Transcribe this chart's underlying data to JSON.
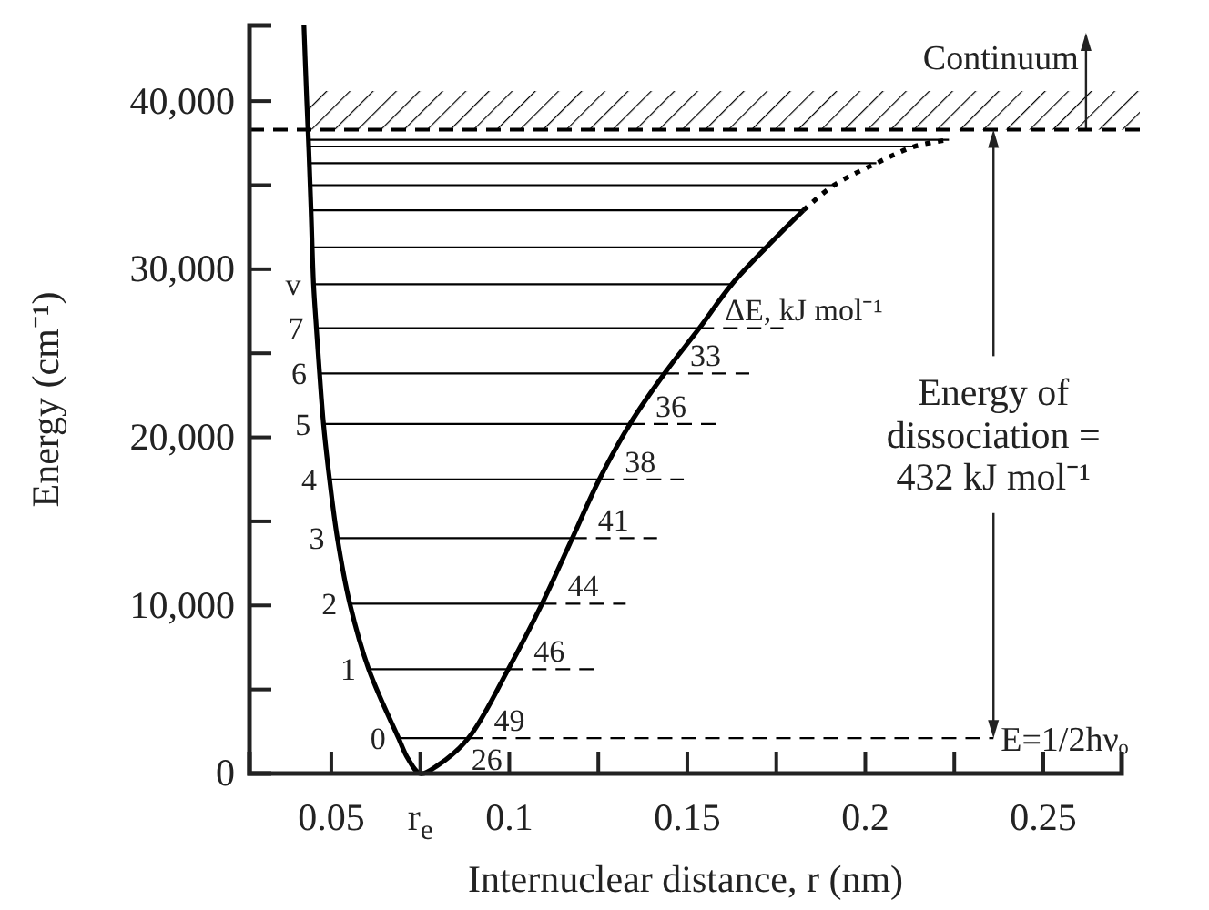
{
  "chart_data": {
    "type": "line",
    "xlabel": "Internuclear distance, r (nm)",
    "ylabel": "Energy (cm⁻¹)",
    "xlim": [
      0.027,
      0.272
    ],
    "ylim": [
      0,
      44500
    ],
    "xticks": [
      0.05,
      {
        "value": 0.075,
        "label": "r$_{e}$"
      },
      0.1,
      {
        "value": 0.125,
        "label": null
      },
      0.15,
      {
        "value": 0.175,
        "label": null
      },
      0.2,
      {
        "value": 0.225,
        "label": null
      },
      0.25
    ],
    "yticks": [
      0,
      {
        "value": 5000,
        "label": null
      },
      {
        "value": 10000,
        "label": "10,000"
      },
      {
        "value": 15000,
        "label": null
      },
      {
        "value": 20000,
        "label": "20,000"
      },
      {
        "value": 25000,
        "label": null
      },
      {
        "value": 30000,
        "label": "30,000"
      },
      {
        "value": 35000,
        "label": null
      },
      {
        "value": 40000,
        "label": "40,000"
      }
    ],
    "series": [
      {
        "color": "#000000",
        "line_style": "solid",
        "x": [
          0.0423,
          0.0431,
          0.0437,
          0.0443,
          0.045,
          0.0458,
          0.0467,
          0.0478,
          0.0495,
          0.0517,
          0.0552,
          0.0605,
          0.0689,
          0.0715,
          0.075,
          0.08,
          0.0885,
          0.0997,
          0.1092,
          0.1177,
          0.1253,
          0.1339,
          0.1436,
          0.1534,
          0.1625,
          0.1722,
          0.1826
        ],
        "values": [
          44500,
          40000,
          37000,
          33500,
          29100,
          26500,
          23800,
          20800,
          17500,
          14000,
          10100,
          6200,
          2100,
          900,
          0,
          500,
          2100,
          6200,
          10100,
          14000,
          17500,
          20800,
          23800,
          26500,
          29100,
          31300,
          33500
        ]
      },
      {
        "color": "#000000",
        "line_style": "dotted",
        "x": [
          0.1826,
          0.1912,
          0.2031,
          0.2138,
          0.2235
        ],
        "values": [
          33500,
          35000,
          36300,
          37300,
          37700
        ]
      },
      {
        "color": "#000000",
        "line_style": "solid",
        "x": [
          0.0689,
          0.0885
        ],
        "values": [
          2100,
          2100
        ]
      },
      {
        "color": "#000000",
        "line_style": "solid",
        "x": [
          0.0605,
          0.0997
        ],
        "values": [
          6200,
          6200
        ]
      },
      {
        "color": "#000000",
        "line_style": "solid",
        "x": [
          0.0552,
          0.1092
        ],
        "values": [
          10100,
          10100
        ]
      },
      {
        "color": "#000000",
        "line_style": "solid",
        "x": [
          0.0517,
          0.1177
        ],
        "values": [
          14000,
          14000
        ]
      },
      {
        "color": "#000000",
        "line_style": "solid",
        "x": [
          0.0495,
          0.1253
        ],
        "values": [
          17500,
          17500
        ]
      },
      {
        "color": "#000000",
        "line_style": "solid",
        "x": [
          0.0478,
          0.1339
        ],
        "values": [
          20800,
          20800
        ]
      },
      {
        "color": "#000000",
        "line_style": "solid",
        "x": [
          0.0467,
          0.1436
        ],
        "values": [
          23800,
          23800
        ]
      },
      {
        "color": "#000000",
        "line_style": "solid",
        "x": [
          0.0458,
          0.1534
        ],
        "values": [
          26500,
          26500
        ]
      },
      {
        "color": "#000000",
        "line_style": "solid",
        "x": [
          0.045,
          0.1625
        ],
        "values": [
          29100,
          29100
        ]
      },
      {
        "color": "#000000",
        "line_style": "solid",
        "x": [
          0.0446,
          0.1722
        ],
        "values": [
          31300,
          31300
        ]
      },
      {
        "color": "#000000",
        "line_style": "solid",
        "x": [
          0.0443,
          0.1826
        ],
        "values": [
          33500,
          33500
        ]
      },
      {
        "color": "#000000",
        "line_style": "solid",
        "x": [
          0.044,
          0.1912
        ],
        "values": [
          35000,
          35000
        ]
      },
      {
        "color": "#000000",
        "line_style": "solid",
        "x": [
          0.0438,
          0.2031
        ],
        "values": [
          36300,
          36300
        ]
      },
      {
        "color": "#000000",
        "line_style": "solid",
        "x": [
          0.0436,
          0.2138
        ],
        "values": [
          37300,
          37300
        ]
      },
      {
        "color": "#000000",
        "line_style": "solid",
        "x": [
          0.0435,
          0.2235
        ],
        "values": [
          37700,
          37700
        ]
      },
      {
        "color": "#000000",
        "line_style": "dashed",
        "x": [
          0.0885,
          0.236
        ],
        "values": [
          2100,
          2100
        ]
      },
      {
        "color": "#000000",
        "line_style": "dashed",
        "x": [
          0.0997,
          0.124
        ],
        "values": [
          6200,
          6200
        ]
      },
      {
        "color": "#000000",
        "line_style": "dashed",
        "x": [
          0.1092,
          0.1327
        ],
        "values": [
          10100,
          10100
        ]
      },
      {
        "color": "#000000",
        "line_style": "dashed",
        "x": [
          0.1177,
          0.1415
        ],
        "values": [
          14000,
          14000
        ]
      },
      {
        "color": "#000000",
        "line_style": "dashed",
        "x": [
          0.1253,
          0.149
        ],
        "values": [
          17500,
          17500
        ]
      },
      {
        "color": "#000000",
        "line_style": "dashed",
        "x": [
          0.1339,
          0.1587
        ],
        "values": [
          20800,
          20800
        ]
      },
      {
        "color": "#000000",
        "line_style": "dashed",
        "x": [
          0.1436,
          0.1674
        ],
        "values": [
          23800,
          23800
        ]
      },
      {
        "color": "#000000",
        "line_style": "dashed",
        "x": [
          0.1534,
          0.177
        ],
        "values": [
          26500,
          26500
        ]
      }
    ],
    "ref_lines": [
      {
        "axis": "y",
        "value": 38300,
        "line_style": "dashed",
        "color": "#000000"
      }
    ],
    "bands": [
      {
        "axis": "y",
        "from": 38300,
        "to": 40600,
        "color": "#000000",
        "label": "Continuum"
      }
    ],
    "annotations": [
      {
        "text": "v",
        "x": 0.045,
        "y": 29100
      },
      {
        "text": "7",
        "x": 0.0458,
        "y": 26500
      },
      {
        "text": "6",
        "x": 0.0467,
        "y": 23800
      },
      {
        "text": "5",
        "x": 0.0478,
        "y": 20800
      },
      {
        "text": "4",
        "x": 0.0495,
        "y": 17500
      },
      {
        "text": "3",
        "x": 0.0517,
        "y": 14000
      },
      {
        "text": "2",
        "x": 0.0552,
        "y": 10100
      },
      {
        "text": "1",
        "x": 0.0605,
        "y": 6200
      },
      {
        "text": "0",
        "x": 0.0689,
        "y": 2100
      },
      {
        "text": "26",
        "x": 0.075,
        "y": 0
      },
      {
        "text": "49",
        "x": 0.0885,
        "y": 2100
      },
      {
        "text": "46",
        "x": 0.0997,
        "y": 6200
      },
      {
        "text": "44",
        "x": 0.1092,
        "y": 10100
      },
      {
        "text": "41",
        "x": 0.1177,
        "y": 14000
      },
      {
        "text": "38",
        "x": 0.1253,
        "y": 17500
      },
      {
        "text": "36",
        "x": 0.1339,
        "y": 20800
      },
      {
        "text": "33",
        "x": 0.1436,
        "y": 23800
      },
      {
        "text": "ΔE, kJ mol⁻¹",
        "x": 0.1534,
        "y": 26500
      },
      "Energy of\ndissociation =\n432 kJ mol⁻¹",
      "E=1/2hνₒ"
    ]
  }
}
